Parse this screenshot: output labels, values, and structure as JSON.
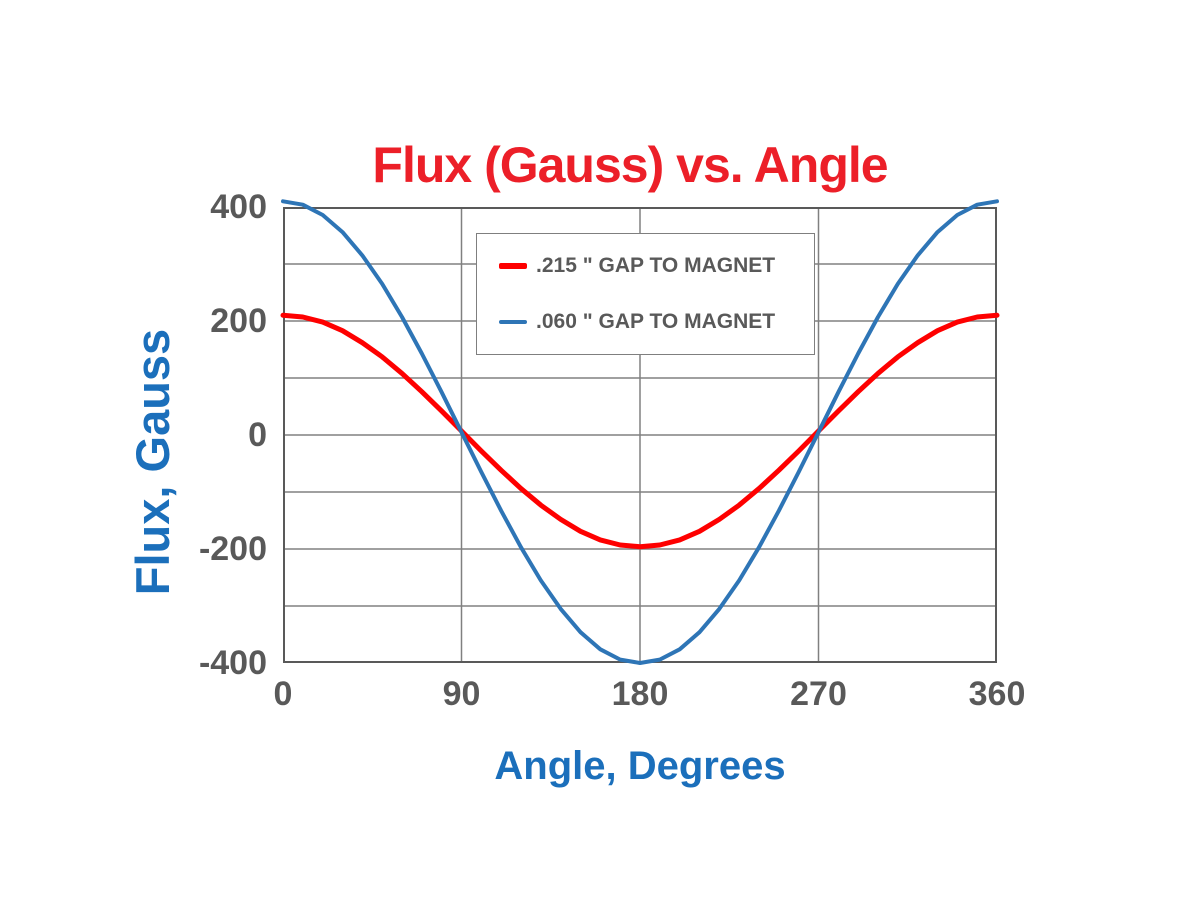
{
  "colors": {
    "background": "#FFFFFF",
    "title": "#EC1F28",
    "axis_titles": "#1B6FBB",
    "tick_labels": "#595959",
    "gridlines": "#808080",
    "plot_border": "#595959",
    "legend_border": "#7F7F7F",
    "legend_text": "#595959",
    "series_red": "#FE0000",
    "series_blue": "#2E75B6"
  },
  "chart_data": {
    "type": "line",
    "title": "Flux (Gauss) vs. Angle",
    "xlabel": "Angle, Degrees",
    "ylabel": "Flux, Gauss",
    "xlim": [
      0,
      360
    ],
    "ylim": [
      -400,
      400
    ],
    "x_ticks": [
      0,
      90,
      180,
      270,
      360
    ],
    "y_ticks": [
      400,
      200,
      0,
      -200,
      -400
    ],
    "y_grid_interval": 100,
    "grid": true,
    "legend_position": "top-center-inside",
    "x": [
      0,
      10,
      20,
      30,
      40,
      50,
      60,
      70,
      80,
      90,
      100,
      110,
      120,
      130,
      140,
      150,
      160,
      170,
      180,
      190,
      200,
      210,
      220,
      230,
      240,
      250,
      260,
      270,
      280,
      290,
      300,
      310,
      320,
      330,
      340,
      350,
      360
    ],
    "series": [
      {
        "name": ".215 \" GAP TO MAGNET",
        "color": "#FE0000",
        "line_width": 5,
        "swatch_height": 6,
        "values": [
          210,
          207,
          198,
          183,
          162,
          137,
          108,
          76,
          42,
          7,
          -28,
          -62,
          -94,
          -123,
          -148,
          -169,
          -184,
          -193,
          -196,
          -193,
          -184,
          -169,
          -148,
          -123,
          -94,
          -62,
          -28,
          7,
          42,
          76,
          108,
          137,
          162,
          183,
          198,
          207,
          210
        ]
      },
      {
        "name": ".060 \" GAP TO MAGNET",
        "color": "#2E75B6",
        "line_width": 4,
        "swatch_height": 4,
        "values": [
          410,
          404,
          386,
          356,
          315,
          265,
          207,
          143,
          75,
          5,
          -65,
          -133,
          -197,
          -255,
          -305,
          -346,
          -376,
          -394,
          -400,
          -394,
          -376,
          -346,
          -305,
          -255,
          -197,
          -133,
          -65,
          5,
          75,
          143,
          207,
          265,
          315,
          356,
          386,
          404,
          410
        ]
      }
    ]
  }
}
